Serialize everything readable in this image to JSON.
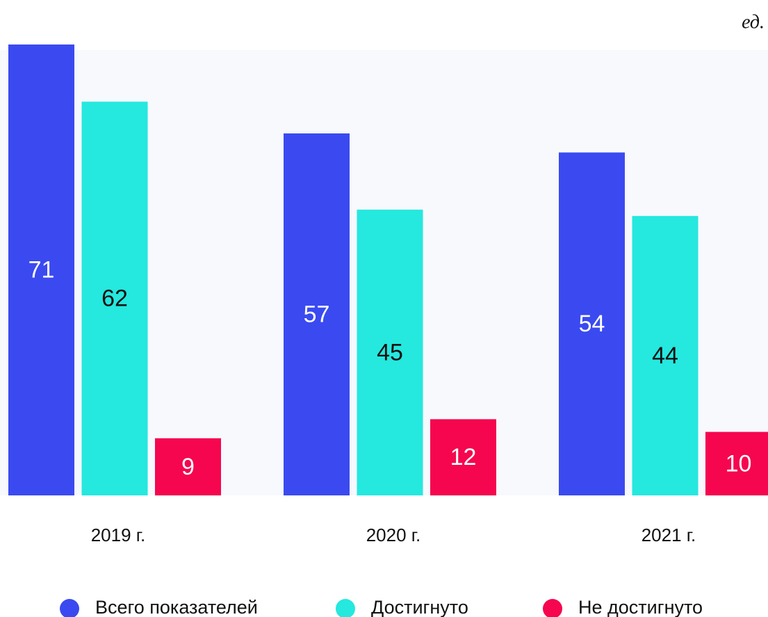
{
  "chart_data": {
    "type": "bar",
    "unit": "ед.",
    "categories": [
      "2019 г.",
      "2020 г.",
      "2021 г."
    ],
    "series": [
      {
        "name": "Всего показателей",
        "color": "#3a4af0",
        "values": [
          71,
          57,
          54
        ]
      },
      {
        "name": "Достигнуто",
        "color": "#25e8df",
        "values": [
          62,
          45,
          44
        ]
      },
      {
        "name": "Не достигнуто",
        "color": "#f5064f",
        "values": [
          9,
          12,
          10
        ]
      }
    ],
    "ylim": [
      0,
      72
    ]
  }
}
